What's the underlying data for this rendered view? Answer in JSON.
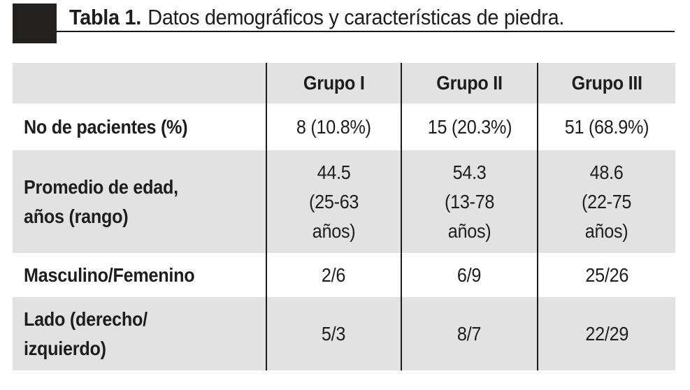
{
  "caption": {
    "label": "Tabla 1.",
    "text": "Datos demográficos y características de piedra."
  },
  "table": {
    "columns": [
      "Grupo I",
      "Grupo II",
      "Grupo III"
    ],
    "rows": [
      {
        "label": "No de pacientes (%)",
        "values": [
          "8 (10.8%)",
          "15 (20.3%)",
          "51 (68.9%)"
        ]
      },
      {
        "label": "Promedio de edad,\naños (rango)",
        "values": [
          "44.5\n(25-63\naños)",
          "54.3\n(13-78\naños)",
          "48.6\n(22-75\naños)"
        ]
      },
      {
        "label": "Masculino/Femenino",
        "values": [
          "2/6",
          "6/9",
          "25/26"
        ]
      },
      {
        "label": "Lado (derecho/\nizquierdo)",
        "values": [
          "5/3",
          "8/7",
          "22/29"
        ]
      }
    ]
  },
  "colors": {
    "row_shade": "#e2e2e2",
    "text": "#1d1d1d",
    "rule": "#161616",
    "marker": "#232020",
    "column_divider": "#1b1b1b"
  }
}
